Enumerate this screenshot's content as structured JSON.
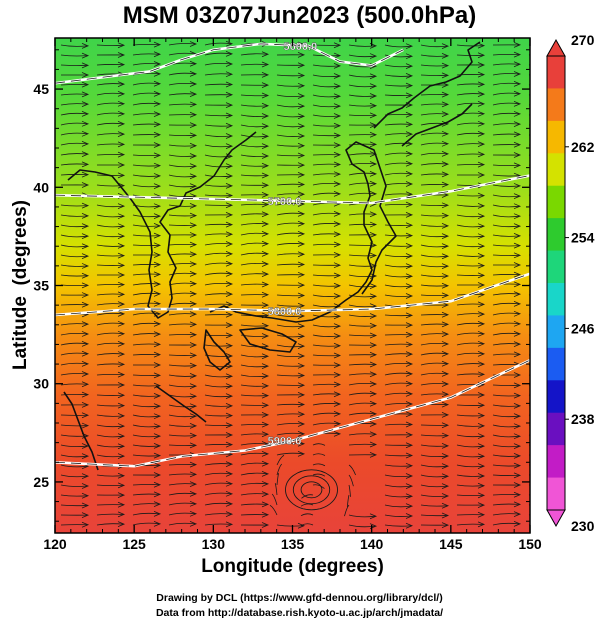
{
  "title": "MSM 03Z07Jun2023 (500.0hPa)",
  "x_axis": {
    "label": "Longitude (degrees)",
    "ticks": [
      "120",
      "125",
      "130",
      "135",
      "140",
      "145",
      "150"
    ]
  },
  "y_axis": {
    "label": "Latitude  (degrees)",
    "ticks": [
      "25",
      "30",
      "35",
      "40",
      "45"
    ]
  },
  "colorbar": {
    "ticks": [
      "270",
      "262",
      "254",
      "246",
      "238",
      "230"
    ],
    "colors": [
      "#e8403a",
      "#f47a1a",
      "#f6b800",
      "#d4e200",
      "#7ad800",
      "#2ecb2e",
      "#1ed67a",
      "#19d6c9",
      "#1ea6f2",
      "#1b5cf2",
      "#1414c8",
      "#6a0fc0",
      "#c21cc6",
      "#f055d6"
    ]
  },
  "contours": [
    {
      "label": "5600.0"
    },
    {
      "label": "5700.0"
    },
    {
      "label": "5800.0"
    },
    {
      "label": "5900.0"
    }
  ],
  "credits": {
    "line1": "Drawing by DCL (https://www.gfd-dennou.org/library/dcl/)",
    "line2": "Data from http://database.rish.kyoto-u.ac.jp/arch/jmadata/"
  },
  "chart_data": {
    "type": "heatmap",
    "title": "MSM 03Z07Jun2023 (500.0hPa)",
    "xlabel": "Longitude (degrees)",
    "ylabel": "Latitude  (degrees)",
    "xlim": [
      120,
      150
    ],
    "ylim": [
      22.4,
      47.6
    ],
    "colorbar_range": [
      230,
      270
    ],
    "field_samples": [
      {
        "lat": 47.0,
        "temperature": 257
      },
      {
        "lat": 45.0,
        "temperature": 258
      },
      {
        "lat": 40.0,
        "temperature": 259
      },
      {
        "lat": 37.0,
        "temperature": 261
      },
      {
        "lat": 35.0,
        "temperature": 262
      },
      {
        "lat": 33.0,
        "temperature": 264
      },
      {
        "lat": 30.0,
        "temperature": 266
      },
      {
        "lat": 27.0,
        "temperature": 268
      },
      {
        "lat": 25.0,
        "temperature": 269
      },
      {
        "lat": 23.0,
        "temperature": 270
      }
    ],
    "height_contours": [
      {
        "label": "5600.0",
        "points": [
          [
            120,
            45.3
          ],
          [
            123,
            45.6
          ],
          [
            126,
            45.9
          ],
          [
            128,
            46.5
          ],
          [
            130,
            47.0
          ],
          [
            133,
            47.3
          ],
          [
            136,
            47.2
          ],
          [
            138,
            46.4
          ],
          [
            140,
            46.2
          ],
          [
            142,
            47.0
          ]
        ]
      },
      {
        "label": "5700.0",
        "points": [
          [
            120,
            39.6
          ],
          [
            125,
            39.5
          ],
          [
            130,
            39.4
          ],
          [
            135,
            39.3
          ],
          [
            140,
            39.2
          ],
          [
            145,
            39.8
          ],
          [
            150,
            40.6
          ]
        ]
      },
      {
        "label": "5800.0",
        "points": [
          [
            120,
            33.5
          ],
          [
            125,
            33.8
          ],
          [
            130,
            33.8
          ],
          [
            135,
            33.7
          ],
          [
            140,
            33.8
          ],
          [
            145,
            34.2
          ],
          [
            150,
            35.6
          ]
        ]
      },
      {
        "label": "5900.0",
        "points": [
          [
            120,
            26.0
          ],
          [
            125,
            25.8
          ],
          [
            128,
            26.3
          ],
          [
            132,
            26.6
          ],
          [
            135,
            27.1
          ],
          [
            140,
            28.2
          ],
          [
            145,
            29.3
          ],
          [
            150,
            31.2
          ]
        ]
      }
    ],
    "vortex_center": {
      "lon": 136.2,
      "lat": 24.6
    }
  }
}
